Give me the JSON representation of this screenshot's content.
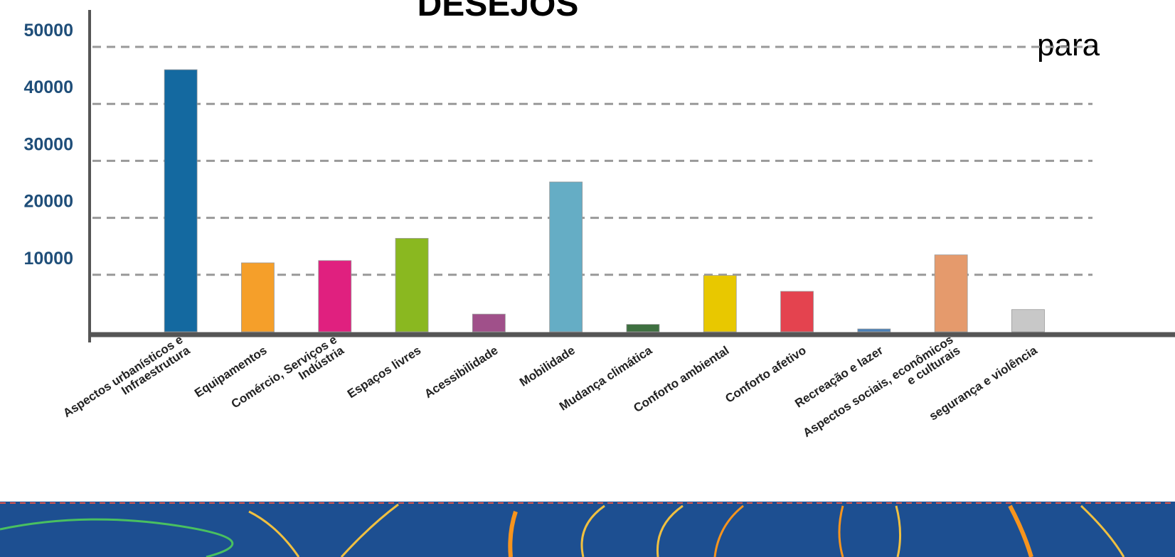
{
  "chart_data": {
    "type": "bar",
    "title": "DESEJOS",
    "annotation": "para",
    "categories": [
      "Aspectos urbanísticos e\nInfraestrutura",
      "Equipamentos",
      "Comércio, Serviços e\nIndústria",
      "Espaços livres",
      "Acessibilidade",
      "Mobilidade",
      "Mudança climática",
      "Conforto ambiental",
      "Conforto afetivo",
      "Recreação e lazer",
      "Aspectos sociais, econômicos\ne culturais",
      "segurança e violência"
    ],
    "values": [
      46000,
      12100,
      12500,
      16400,
      3100,
      26300,
      1300,
      9900,
      7100,
      500,
      13500,
      3900
    ],
    "colors": [
      "#1469a0",
      "#f59f2a",
      "#e0207f",
      "#8ab820",
      "#a0508a",
      "#65adc5",
      "#3e7040",
      "#e8c800",
      "#e4434f",
      "#4a80b8",
      "#e59a6c",
      "#c8c8c8"
    ],
    "ylim": [
      0,
      50000
    ],
    "yticks": [
      10000,
      20000,
      30000,
      40000,
      50000
    ],
    "grid": true
  }
}
